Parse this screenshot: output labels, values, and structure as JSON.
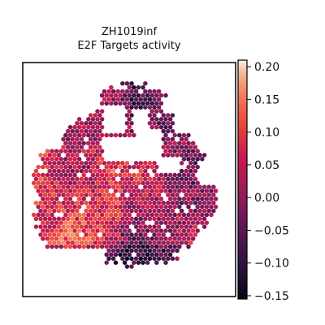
{
  "chart_data": {
    "type": "heatmap",
    "title_line1": "ZH1019inf",
    "title_line2": "E2F Targets activity",
    "xlabel": "",
    "ylabel": "",
    "grid": false,
    "colormap": "rocket",
    "color_range": [
      -0.155,
      0.21
    ],
    "colorbar_ticks": [
      -0.15,
      -0.1,
      -0.05,
      0.0,
      0.05,
      0.1,
      0.15,
      0.2
    ],
    "colorbar_tick_labels": [
      "−0.15",
      "−0.10",
      "−0.05",
      "0.00",
      "0.05",
      "0.10",
      "0.15",
      "0.20"
    ],
    "legend": "colorbar-right"
  }
}
